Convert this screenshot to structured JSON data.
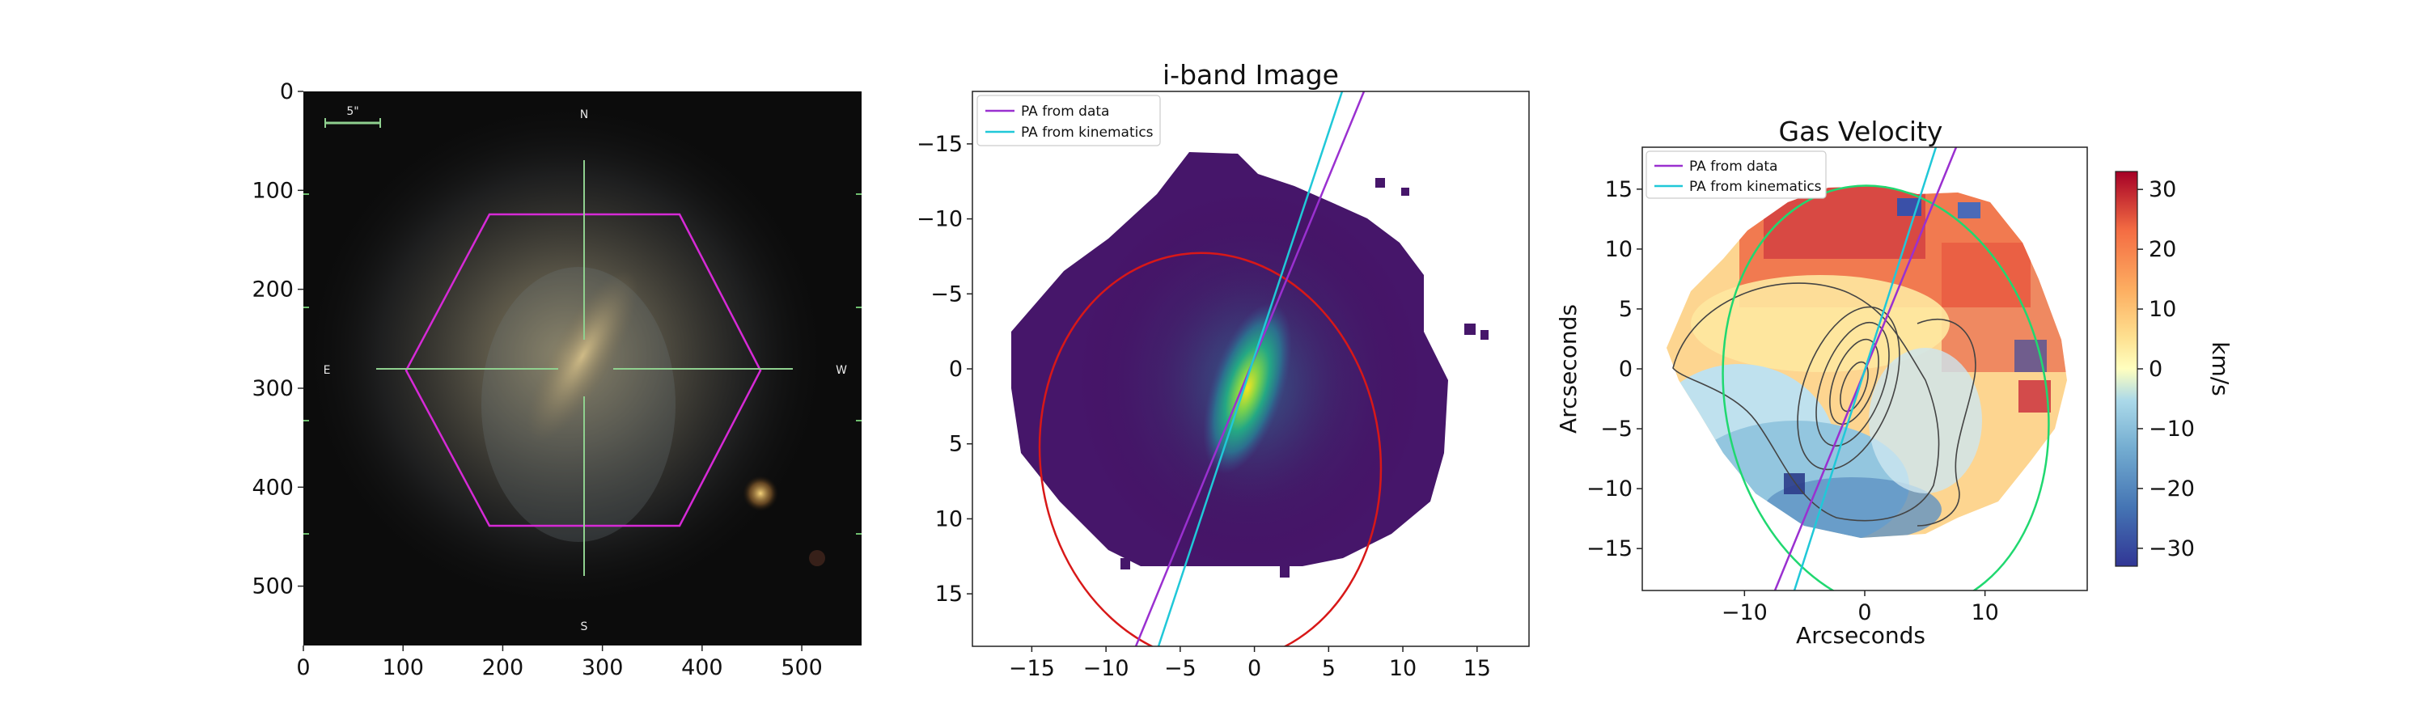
{
  "panel1": {
    "x_ticks": [
      "0",
      "100",
      "200",
      "300",
      "400",
      "500"
    ],
    "y_ticks": [
      "0",
      "100",
      "200",
      "300",
      "400",
      "500"
    ],
    "compass": {
      "n": "N",
      "s": "S",
      "e": "E",
      "w": "W"
    },
    "scale_bar_label": "5\"",
    "colors": {
      "hexagon": "#d62ad6",
      "crosshair": "#8fd08f"
    }
  },
  "panel2": {
    "title": "i-band Image",
    "x_ticks": [
      "−15",
      "−10",
      "−5",
      "0",
      "5",
      "10",
      "15"
    ],
    "y_ticks": [
      "−15",
      "−10",
      "−5",
      "0",
      "5",
      "10",
      "15"
    ],
    "legend": [
      "PA from data",
      "PA from kinematics"
    ],
    "colors": {
      "pa_data": "#9a30d0",
      "pa_kin": "#20c8d8",
      "ellipse": "#d81818"
    }
  },
  "panel3": {
    "title": "Gas Velocity",
    "xlabel": "Arcseconds",
    "ylabel": "Arcseconds",
    "x_ticks": [
      "−10",
      "0",
      "10"
    ],
    "y_ticks": [
      "15",
      "10",
      "5",
      "0",
      "−5",
      "−10",
      "−15"
    ],
    "legend": [
      "PA from data",
      "PA from kinematics"
    ],
    "colorbar": {
      "label": "km/s",
      "ticks": [
        "30",
        "20",
        "10",
        "0",
        "−10",
        "−20",
        "−30"
      ],
      "range": [
        -33,
        33
      ]
    },
    "colors": {
      "pa_data": "#9a30d0",
      "pa_kin": "#20c8d8",
      "ellipse": "#20d870",
      "contours": "#444444"
    }
  },
  "chart_data": [
    {
      "type": "image",
      "x_ticks": [
        0,
        100,
        200,
        300,
        400,
        500
      ],
      "y_ticks": [
        0,
        100,
        200,
        300,
        400,
        500
      ],
      "xlim": [
        0,
        560
      ],
      "ylim": [
        560,
        0
      ],
      "overlays": [
        "hexagon",
        "crosshair",
        "compass labels N/S/E/W",
        "scale bar 5\""
      ]
    },
    {
      "type": "heatmap",
      "title": "i-band Image",
      "xlim": [
        -19,
        18.5
      ],
      "ylim": [
        18.5,
        -18.5
      ],
      "x_ticks": [
        -15,
        -10,
        -5,
        0,
        5,
        10,
        15
      ],
      "y_ticks": [
        -15,
        -10,
        -5,
        0,
        5,
        10,
        15
      ],
      "series": [
        {
          "name": "PA from data"
        },
        {
          "name": "PA from kinematics"
        }
      ],
      "ellipse": {
        "center": [
          -2.6,
          2.2
        ],
        "semi_axes": [
          11.2,
          11.8
        ],
        "rotation_deg": -8
      },
      "lines": [
        {
          "name": "PA from data",
          "from": [
            -7.6,
            18.5
          ],
          "to": [
            7.6,
            -18.5
          ]
        },
        {
          "name": "PA from kinematics",
          "from": [
            -6.1,
            18.5
          ],
          "to": [
            6.1,
            -18.5
          ]
        }
      ]
    },
    {
      "type": "heatmap",
      "title": "Gas Velocity",
      "xlabel": "Arcseconds",
      "ylabel": "Arcseconds",
      "xlim": [
        -18.5,
        18.5
      ],
      "ylim": [
        -18.5,
        18.5
      ],
      "x_ticks": [
        -10,
        0,
        10
      ],
      "y_ticks": [
        15,
        10,
        5,
        0,
        -5,
        -10,
        -15
      ],
      "colorbar": {
        "label": "km/s",
        "ticks": [
          30,
          20,
          10,
          0,
          -10,
          -20,
          -30
        ],
        "range": [
          -33,
          33
        ]
      },
      "series": [
        {
          "name": "PA from data"
        },
        {
          "name": "PA from kinematics"
        }
      ],
      "ellipse": {
        "center": [
          1.8,
          -2.7
        ],
        "semi_axes": [
          8.3,
          11.5
        ],
        "rotation_deg": -12
      },
      "lines": [
        {
          "name": "PA from data",
          "from": [
            -7.8,
            -18.5
          ],
          "to": [
            7.8,
            18.5
          ]
        },
        {
          "name": "PA from kinematics",
          "from": [
            -6.1,
            -18.5
          ],
          "to": [
            6.1,
            18.5
          ]
        }
      ]
    }
  ]
}
